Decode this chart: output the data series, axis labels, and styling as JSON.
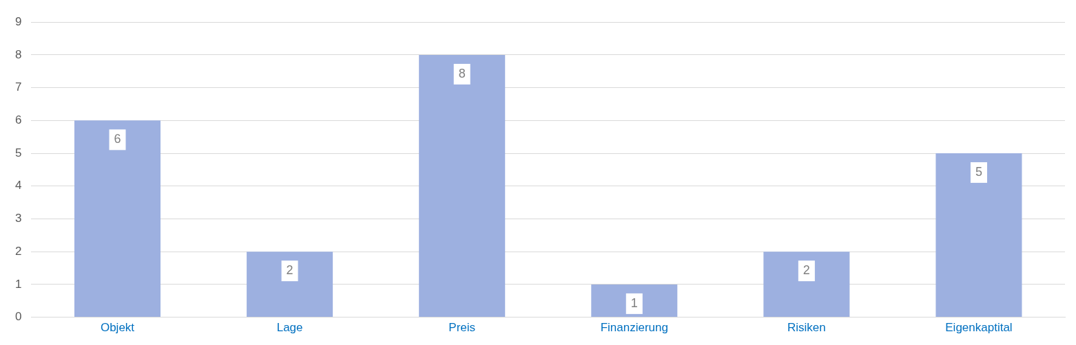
{
  "chart_data": {
    "type": "bar",
    "categories": [
      "Objekt",
      "Lage",
      "Preis",
      "Finanzierung",
      "Risiken",
      "Eigenkaptital"
    ],
    "values": [
      6,
      2,
      8,
      1,
      2,
      5
    ],
    "color": "#9db0e0",
    "ylim": [
      0,
      9
    ],
    "yticks": [
      0,
      1,
      2,
      3,
      4,
      5,
      6,
      7,
      8,
      9
    ],
    "grid": "y",
    "data_labels": true
  }
}
